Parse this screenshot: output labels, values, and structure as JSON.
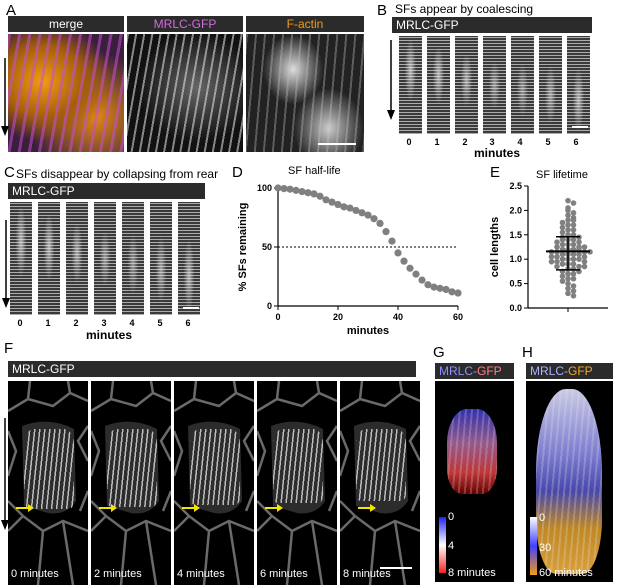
{
  "panel_labels": {
    "a": "A",
    "b": "B",
    "c": "C",
    "d": "D",
    "e": "E",
    "f": "F",
    "g": "G",
    "h": "H"
  },
  "panel_a": {
    "headers": [
      "merge",
      "MRLC-GFP",
      "F-actin"
    ]
  },
  "panel_b": {
    "title": "SFs appear by coalescing",
    "bar": "MRLC-GFP",
    "ticks": [
      "0",
      "1",
      "2",
      "3",
      "4",
      "5",
      "6"
    ],
    "xlabel": "minutes"
  },
  "panel_c": {
    "title": "SFs disappear by collapsing from rear",
    "bar": "MRLC-GFP",
    "ticks": [
      "0",
      "1",
      "2",
      "3",
      "4",
      "5",
      "6"
    ],
    "xlabel": "minutes"
  },
  "panel_f": {
    "bar": "MRLC-GFP",
    "times": [
      "0 minutes",
      "2 minutes",
      "4 minutes",
      "6 minutes",
      "8 minutes"
    ]
  },
  "panel_g": {
    "bar_parts": [
      "MRLC-",
      "GFP"
    ],
    "bar_colors": [
      "#8f8fff",
      "#ff8080"
    ],
    "scale_labels": [
      "0",
      "4",
      "8 minutes"
    ]
  },
  "panel_h": {
    "bar_parts": [
      "MRLC-",
      "GFP"
    ],
    "bar_colors": [
      "#b0b0ff",
      "#f6a623"
    ],
    "scale_labels": [
      "0",
      "30",
      "60 minutes"
    ]
  },
  "colors": {
    "magenta": "#c84bd6",
    "orange": "#f39c12",
    "marker": "#808080"
  },
  "chart_data": [
    {
      "type": "scatter",
      "title": "SF half-life",
      "xlabel": "minutes",
      "ylabel": "% SFs remaining",
      "xlim": [
        0,
        60
      ],
      "ylim": [
        0,
        100
      ],
      "xticks": [
        0,
        20,
        40,
        60
      ],
      "yticks": [
        0,
        50,
        100
      ],
      "reference_line": 50,
      "x": [
        0,
        2,
        4,
        6,
        8,
        10,
        12,
        14,
        16,
        18,
        20,
        22,
        24,
        26,
        28,
        30,
        32,
        34,
        36,
        38,
        40,
        42,
        44,
        46,
        48,
        50,
        52,
        54,
        56,
        58,
        60
      ],
      "y": [
        100,
        99.5,
        99,
        98,
        97,
        96,
        95,
        93,
        90,
        88,
        86,
        84,
        83,
        81,
        79,
        77,
        74,
        70,
        63,
        55,
        45,
        38,
        32,
        27,
        22,
        18,
        16,
        15,
        14,
        12,
        11
      ]
    },
    {
      "type": "scatter",
      "title": "SF lifetime",
      "xlabel": "",
      "ylabel": "cell lengths",
      "ylim": [
        0,
        2.5
      ],
      "yticks": [
        "0.0",
        "0.5",
        "1.0",
        "1.5",
        "2.0",
        "2.5"
      ],
      "mean": 1.16,
      "sd_low": 0.78,
      "sd_high": 1.46,
      "values": [
        2.2,
        2.15,
        2.05,
        2.0,
        1.95,
        1.9,
        1.85,
        1.8,
        1.8,
        1.75,
        1.7,
        1.7,
        1.65,
        1.6,
        1.6,
        1.55,
        1.5,
        1.5,
        1.45,
        1.45,
        1.4,
        1.4,
        1.4,
        1.35,
        1.35,
        1.3,
        1.3,
        1.3,
        1.25,
        1.25,
        1.25,
        1.2,
        1.2,
        1.2,
        1.2,
        1.15,
        1.15,
        1.15,
        1.15,
        1.1,
        1.1,
        1.1,
        1.1,
        1.05,
        1.05,
        1.05,
        1.0,
        1.0,
        1.0,
        1.0,
        0.95,
        0.95,
        0.95,
        0.9,
        0.9,
        0.9,
        0.85,
        0.85,
        0.85,
        0.8,
        0.8,
        0.75,
        0.75,
        0.7,
        0.7,
        0.65,
        0.6,
        0.6,
        0.55,
        0.5,
        0.45,
        0.4,
        0.35,
        0.3,
        0.25
      ]
    }
  ]
}
